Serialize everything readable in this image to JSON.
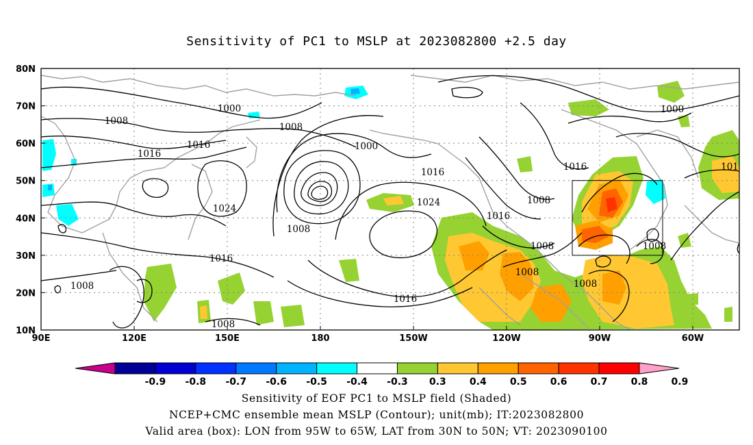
{
  "title": "Sensitivity of PC1 to MSLP at 2023082800 +2.5 day",
  "map": {
    "lat_labels": [
      "80N",
      "70N",
      "60N",
      "50N",
      "40N",
      "30N",
      "20N",
      "10N"
    ],
    "lon_labels": [
      "90E",
      "120E",
      "150E",
      "180",
      "150W",
      "120W",
      "90W",
      "60W"
    ],
    "contour_labels": [
      {
        "text": "1000"
      },
      {
        "text": "1008"
      },
      {
        "text": "1008"
      },
      {
        "text": "1008"
      },
      {
        "text": "1016"
      },
      {
        "text": "1016"
      },
      {
        "text": "1000"
      },
      {
        "text": "1016"
      },
      {
        "text": "1024"
      },
      {
        "text": "1024"
      },
      {
        "text": "1008"
      },
      {
        "text": "1016"
      },
      {
        "text": "1016"
      },
      {
        "text": "1008"
      },
      {
        "text": "1016"
      },
      {
        "text": "1016"
      },
      {
        "text": "1008"
      },
      {
        "text": "1008"
      },
      {
        "text": "1008"
      },
      {
        "text": "1008"
      },
      {
        "text": "1000"
      },
      {
        "text": "1008"
      },
      {
        "text": "101"
      }
    ]
  },
  "colorbar": {
    "labels": [
      "-0.9",
      "-0.8",
      "-0.7",
      "-0.6",
      "-0.5",
      "-0.4",
      "-0.3",
      "0.3",
      "0.4",
      "0.5",
      "0.6",
      "0.7",
      "0.8",
      "0.9"
    ],
    "colors": [
      "#c8008c",
      "#000096",
      "#0000d2",
      "#0032ff",
      "#0078ff",
      "#00b4ff",
      "#00ffff",
      "#ffffff",
      "#96d232",
      "#ffc832",
      "#ffa000",
      "#ff6400",
      "#ff3200",
      "#ff0000",
      "#ffa0c8"
    ]
  },
  "captions": [
    "Sensitivity of EOF PC1 to MSLP field (Shaded)",
    "NCEP+CMC ensemble mean MSLP (Contour); unit(mb); IT:2023082800",
    "Valid area (box): LON from 95W to 65W, LAT from 30N to 50N; VT: 2023090100"
  ]
}
